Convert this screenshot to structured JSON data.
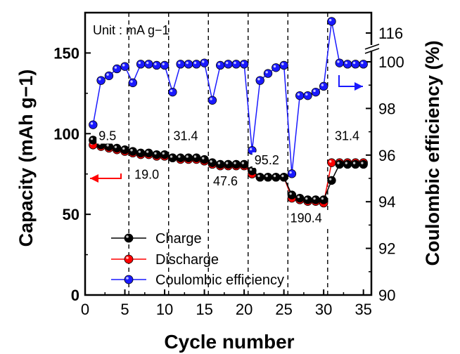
{
  "chart_data": {
    "type": "scatter",
    "xlabel": "Cycle number",
    "ylabel_left": "Capacity (mAh g−1)",
    "ylabel_right": "Coulombic efficiency (%)",
    "unit_note": "Unit : mA g−1",
    "xlim": [
      0,
      36
    ],
    "ylim_left": [
      0,
      175
    ],
    "ylim_right": [
      90,
      117
    ],
    "x_ticks": [
      0,
      5,
      10,
      15,
      20,
      25,
      30,
      35
    ],
    "y_ticks_left": [
      0,
      50,
      100,
      150
    ],
    "y_ticks_right": [
      90,
      92,
      94,
      96,
      98,
      100,
      116
    ],
    "right_axis_break": true,
    "x": [
      1,
      2,
      3,
      4,
      5,
      6,
      7,
      8,
      9,
      10,
      11,
      12,
      13,
      14,
      15,
      16,
      17,
      18,
      19,
      20,
      21,
      22,
      23,
      24,
      25,
      26,
      27,
      28,
      29,
      30,
      31,
      32,
      33,
      34,
      35
    ],
    "series": [
      {
        "name": "Charge",
        "axis": "left",
        "color": "#000000",
        "values": [
          96,
          93,
          92,
          91,
          90,
          89,
          88,
          88,
          87,
          87,
          85,
          85,
          85,
          85,
          84,
          82,
          81,
          81,
          81,
          81,
          77,
          73,
          73,
          73,
          73,
          62,
          60,
          59,
          59,
          59,
          71,
          81,
          81,
          81,
          81
        ]
      },
      {
        "name": "Discharge",
        "axis": "left",
        "color": "#ff0000",
        "values": [
          93,
          92,
          91,
          90,
          89,
          88,
          87,
          87,
          86,
          86,
          85,
          84,
          84,
          84,
          83,
          81,
          80,
          80,
          80,
          80,
          75,
          73,
          73,
          73,
          73,
          60,
          59,
          58,
          58,
          57,
          82,
          82,
          82,
          82,
          82
        ]
      },
      {
        "name": "Coulombic efficiency",
        "axis": "right",
        "color": "#1a1aff",
        "values": [
          97.3,
          99.2,
          99.4,
          99.7,
          99.8,
          99.1,
          99.9,
          99.9,
          99.85,
          99.85,
          98.7,
          99.9,
          99.9,
          99.9,
          99.95,
          98.35,
          99.85,
          99.9,
          99.9,
          99.9,
          96.2,
          99.2,
          99.5,
          99.75,
          99.85,
          95.2,
          98.55,
          98.55,
          98.7,
          98.95,
          116.5,
          99.95,
          99.9,
          99.9,
          99.9
        ]
      }
    ],
    "rate_labels": [
      {
        "text": "9.5",
        "x": 1.7,
        "y": 96
      },
      {
        "text": "19.0",
        "x": 6.2,
        "y": 72
      },
      {
        "text": "31.4",
        "x": 11.1,
        "y": 96
      },
      {
        "text": "47.6",
        "x": 16.1,
        "y": 68
      },
      {
        "text": "95.2",
        "x": 21.3,
        "y": 81
      },
      {
        "text": "190.4",
        "x": 25.8,
        "y": 45
      },
      {
        "text": "31.4",
        "x": 31.4,
        "y": 96
      }
    ],
    "dividers_x": [
      5.5,
      10.5,
      15.5,
      20.5,
      25.5,
      30.5
    ],
    "legend_placement": "bottom-left"
  }
}
